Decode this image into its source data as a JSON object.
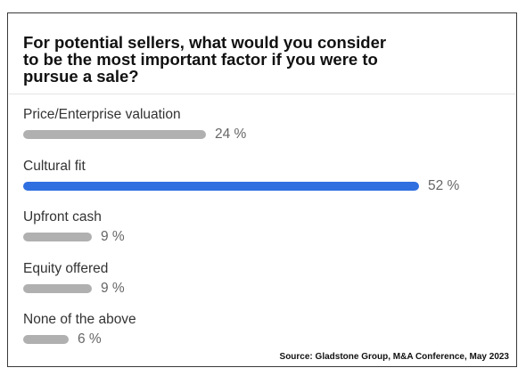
{
  "question": "For potential sellers, what would you consider\nto be the most important factor if you were to\npursue a sale?",
  "source": "Source:  Gladstone Group, M&A Conference, May 2023",
  "colors": {
    "highlight": "#2f6fe0",
    "default": "#b0b0b0"
  },
  "chart_data": {
    "type": "bar",
    "orientation": "horizontal",
    "title": "For potential sellers, what would you consider to be the most important factor if you were to pursue a sale?",
    "categories": [
      "Price/Enterprise valuation",
      "Cultural fit",
      "Upfront cash",
      "Equity offered",
      "None of the above"
    ],
    "values": [
      24,
      52,
      9,
      9,
      6
    ],
    "value_labels": [
      "24 %",
      "52 %",
      "9 %",
      "9 %",
      "6 %"
    ],
    "highlighted_index": 1,
    "xlim": [
      0,
      52
    ],
    "grid": false
  }
}
